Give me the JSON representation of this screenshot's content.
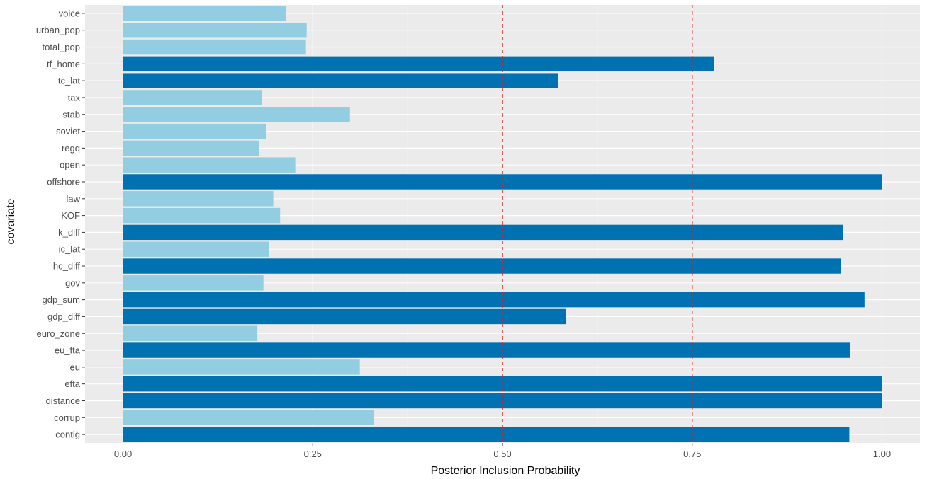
{
  "chart_data": {
    "type": "bar",
    "orientation": "horizontal",
    "title": "",
    "xlabel": "Posterior Inclusion Probability",
    "ylabel": "covariate",
    "xlim": [
      -0.05,
      1.05
    ],
    "xticks": [
      0.0,
      0.25,
      0.5,
      0.75,
      1.0
    ],
    "xtick_labels": [
      "0.00",
      "0.25",
      "0.50",
      "0.75",
      "1.00"
    ],
    "reference_lines": [
      0.5,
      0.75
    ],
    "grid": true,
    "legend": "none",
    "colors": {
      "panel_bg": "#ebebeb",
      "grid_major": "#ffffff",
      "bar_high": "#0072b2",
      "bar_low": "#92cde2",
      "reference_line": "#e41a1c"
    },
    "categories": [
      "voice",
      "urban_pop",
      "total_pop",
      "tf_home",
      "tc_lat",
      "tax",
      "stab",
      "soviet",
      "regq",
      "open",
      "offshore",
      "law",
      "KOF",
      "k_diff",
      "ic_lat",
      "hc_diff",
      "gov",
      "gdp_sum",
      "gdp_diff",
      "euro_zone",
      "eu_fta",
      "eu",
      "efta",
      "distance",
      "corrup",
      "contig"
    ],
    "values": [
      0.215,
      0.242,
      0.241,
      0.779,
      0.573,
      0.183,
      0.299,
      0.189,
      0.179,
      0.227,
      1.0,
      0.198,
      0.207,
      0.949,
      0.192,
      0.946,
      0.185,
      0.977,
      0.584,
      0.177,
      0.958,
      0.312,
      1.0,
      1.0,
      0.331,
      0.957
    ],
    "groups": [
      "low",
      "low",
      "low",
      "high",
      "high",
      "low",
      "low",
      "low",
      "low",
      "low",
      "high",
      "low",
      "low",
      "high",
      "low",
      "high",
      "low",
      "high",
      "high",
      "low",
      "high",
      "low",
      "high",
      "high",
      "low",
      "high"
    ]
  }
}
